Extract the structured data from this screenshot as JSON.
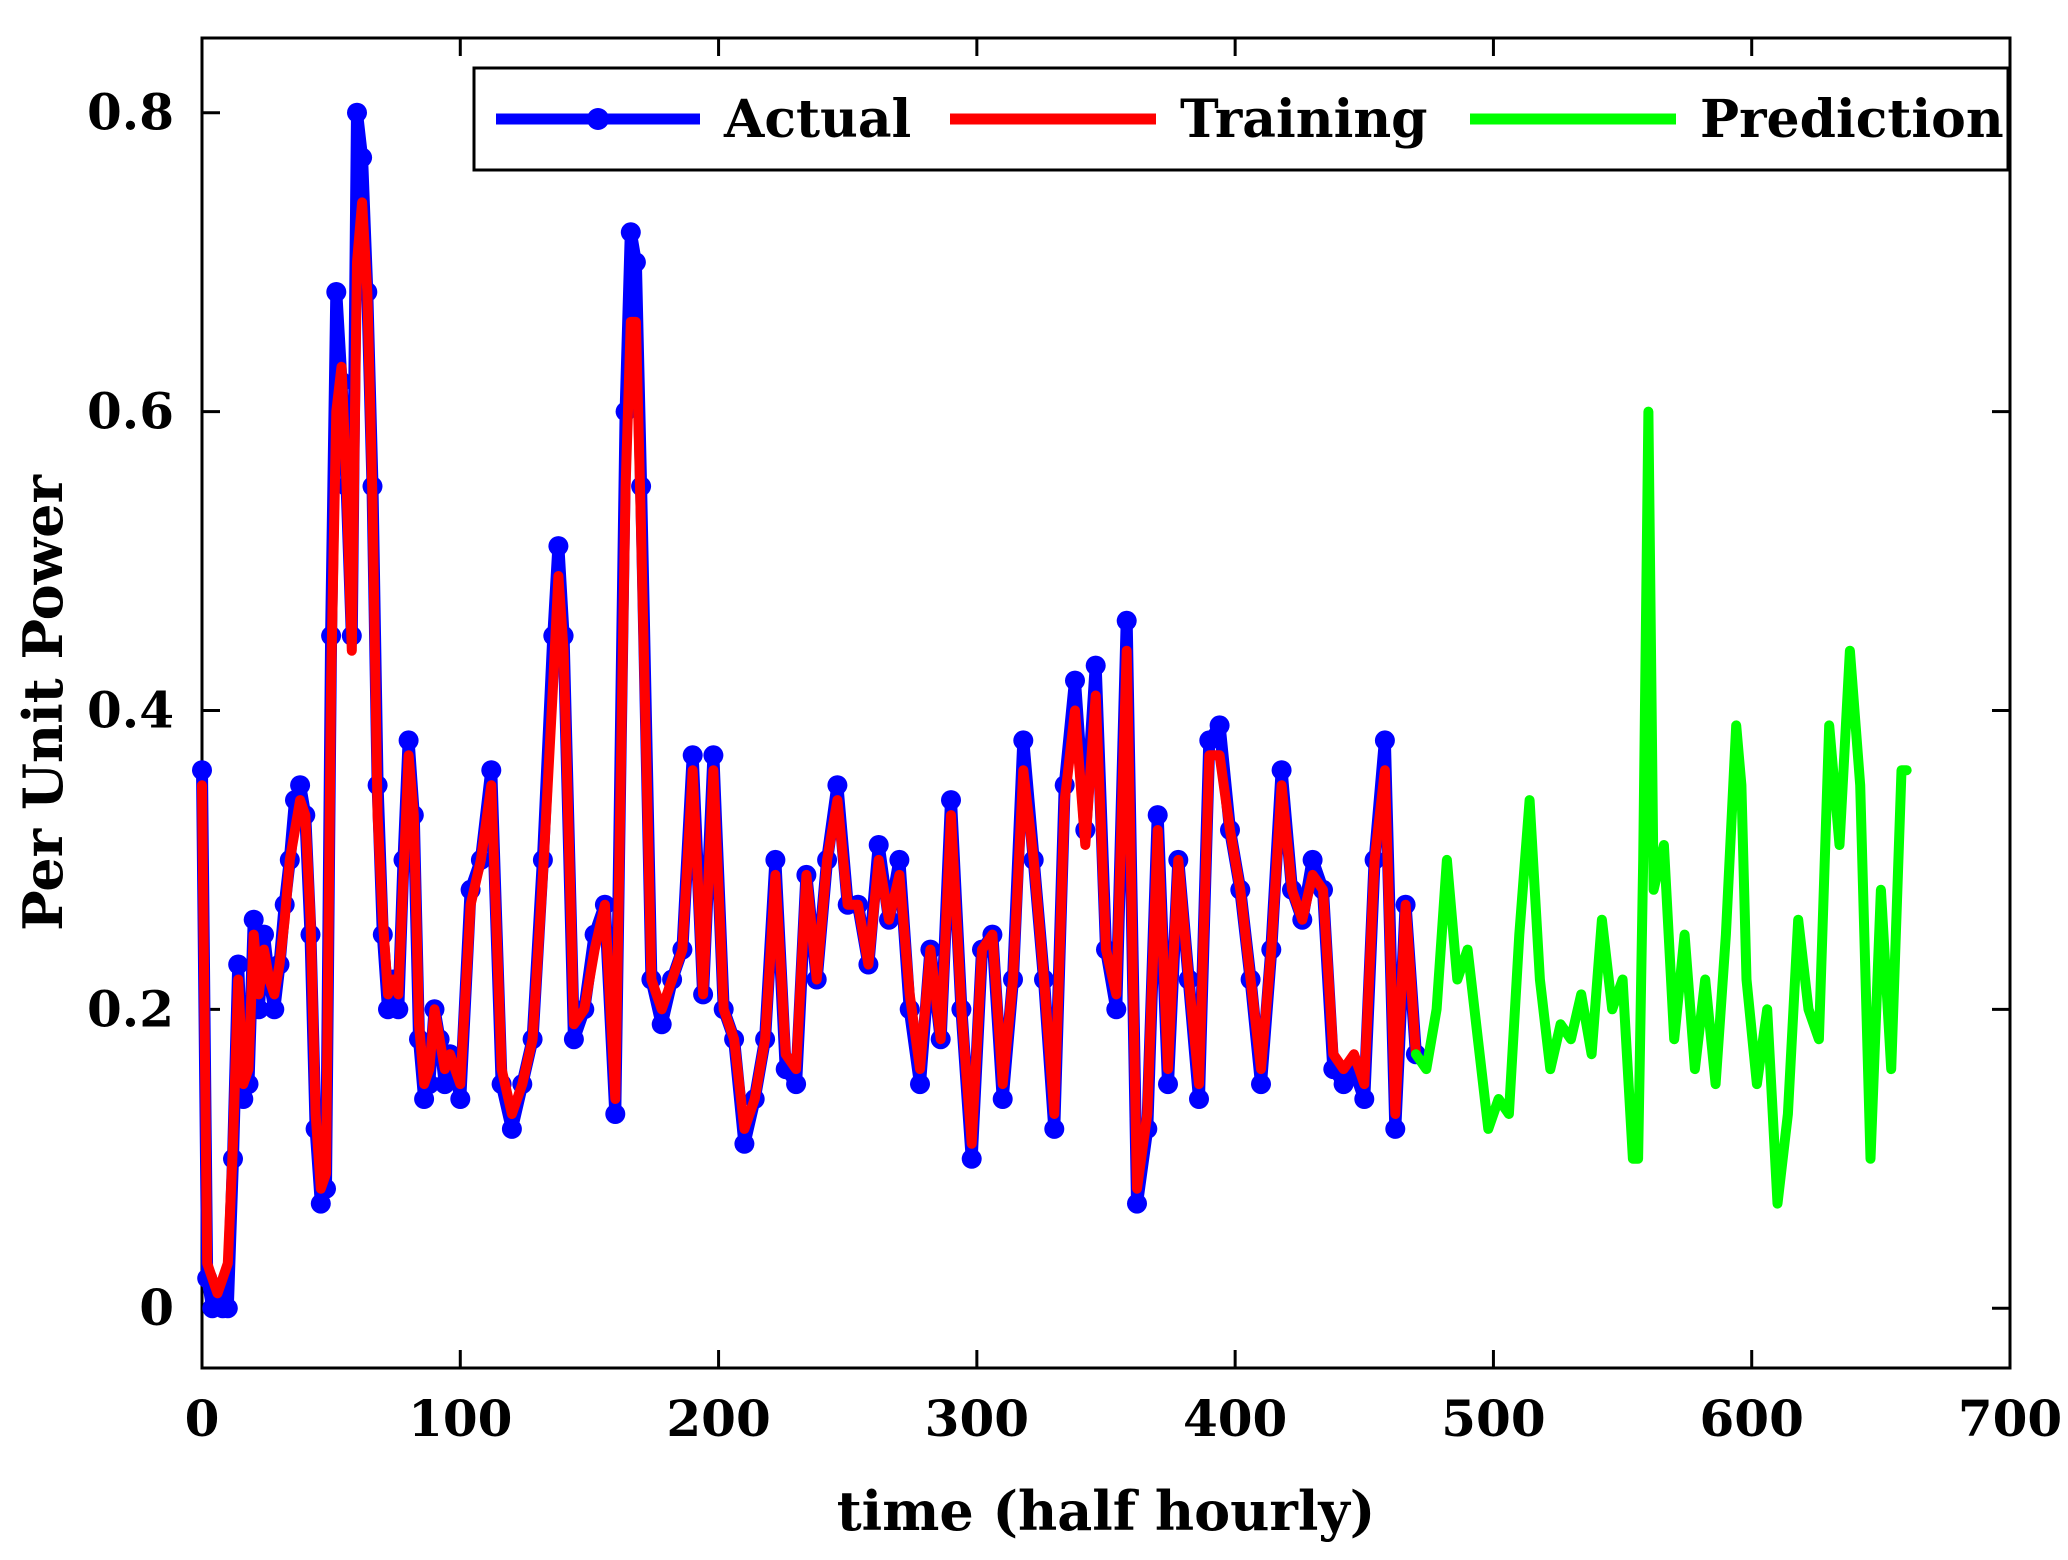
{
  "chart_data": {
    "type": "line",
    "title": "",
    "xlabel": "time (half hourly)",
    "ylabel": "Per Unit Power",
    "xlim": [
      0,
      700
    ],
    "ylim": [
      -0.04,
      0.85
    ],
    "xticks": [
      0,
      100,
      200,
      300,
      400,
      500,
      600,
      700
    ],
    "yticks": [
      0,
      0.2,
      0.4,
      0.6,
      0.8
    ],
    "xtick_labels": [
      "0",
      "100",
      "200",
      "300",
      "400",
      "500",
      "600",
      "700"
    ],
    "ytick_labels": [
      "0",
      "0.2",
      "0.4",
      "0.6",
      "0.8"
    ],
    "grid": false,
    "legend": {
      "position": "top-right",
      "entries": [
        "Actual",
        "Training",
        "Prediction"
      ]
    },
    "series": [
      {
        "name": "Actual",
        "color": "#0000ff",
        "marker": "circle",
        "x": [
          0,
          2,
          4,
          6,
          8,
          10,
          12,
          14,
          16,
          18,
          20,
          22,
          24,
          26,
          28,
          30,
          32,
          34,
          36,
          38,
          40,
          42,
          44,
          46,
          48,
          50,
          52,
          54,
          56,
          58,
          60,
          62,
          64,
          66,
          68,
          70,
          72,
          74,
          76,
          78,
          80,
          82,
          84,
          86,
          88,
          90,
          92,
          94,
          96,
          98,
          100,
          104,
          108,
          112,
          116,
          120,
          124,
          128,
          132,
          136,
          138,
          140,
          144,
          148,
          152,
          156,
          160,
          164,
          166,
          168,
          170,
          174,
          178,
          182,
          186,
          190,
          194,
          198,
          202,
          206,
          210,
          214,
          218,
          222,
          226,
          230,
          234,
          238,
          242,
          246,
          250,
          254,
          258,
          262,
          266,
          270,
          274,
          278,
          282,
          286,
          290,
          294,
          298,
          302,
          306,
          310,
          314,
          318,
          322,
          326,
          330,
          334,
          338,
          342,
          346,
          350,
          354,
          358,
          362,
          366,
          370,
          374,
          378,
          382,
          386,
          390,
          394,
          398,
          402,
          406,
          410,
          414,
          418,
          422,
          426,
          430,
          434,
          438,
          442,
          446,
          450,
          454,
          458,
          462,
          466,
          470
        ],
        "values": [
          0.36,
          0.02,
          0.0,
          0.01,
          0.0,
          0.0,
          0.1,
          0.23,
          0.14,
          0.15,
          0.26,
          0.2,
          0.25,
          0.22,
          0.2,
          0.23,
          0.27,
          0.3,
          0.34,
          0.35,
          0.33,
          0.25,
          0.12,
          0.07,
          0.08,
          0.45,
          0.68,
          0.62,
          0.55,
          0.45,
          0.8,
          0.77,
          0.68,
          0.55,
          0.35,
          0.25,
          0.2,
          0.22,
          0.2,
          0.3,
          0.38,
          0.33,
          0.18,
          0.14,
          0.15,
          0.2,
          0.18,
          0.15,
          0.17,
          0.16,
          0.14,
          0.28,
          0.3,
          0.36,
          0.15,
          0.12,
          0.15,
          0.18,
          0.3,
          0.45,
          0.51,
          0.45,
          0.18,
          0.2,
          0.25,
          0.27,
          0.13,
          0.6,
          0.72,
          0.7,
          0.55,
          0.22,
          0.19,
          0.22,
          0.24,
          0.37,
          0.21,
          0.37,
          0.2,
          0.18,
          0.11,
          0.14,
          0.18,
          0.3,
          0.16,
          0.15,
          0.29,
          0.22,
          0.3,
          0.35,
          0.27,
          0.27,
          0.23,
          0.31,
          0.26,
          0.3,
          0.2,
          0.15,
          0.24,
          0.18,
          0.34,
          0.2,
          0.1,
          0.24,
          0.25,
          0.14,
          0.22,
          0.38,
          0.3,
          0.22,
          0.12,
          0.35,
          0.42,
          0.32,
          0.43,
          0.24,
          0.2,
          0.46,
          0.07,
          0.12,
          0.33,
          0.15,
          0.3,
          0.22,
          0.14,
          0.38,
          0.39,
          0.32,
          0.28,
          0.22,
          0.15,
          0.24,
          0.36,
          0.28,
          0.26,
          0.3,
          0.28,
          0.16,
          0.15,
          0.16,
          0.14,
          0.3,
          0.38,
          0.12,
          0.27,
          0.17
        ]
      },
      {
        "name": "Training",
        "color": "#ff0000",
        "marker": "none",
        "x": [
          0,
          2,
          4,
          6,
          8,
          10,
          12,
          14,
          16,
          18,
          20,
          22,
          24,
          26,
          28,
          30,
          32,
          34,
          36,
          38,
          40,
          42,
          44,
          46,
          48,
          50,
          52,
          54,
          56,
          58,
          60,
          62,
          64,
          66,
          68,
          70,
          72,
          74,
          76,
          78,
          80,
          82,
          84,
          86,
          88,
          90,
          92,
          94,
          96,
          98,
          100,
          104,
          108,
          112,
          116,
          120,
          124,
          128,
          132,
          136,
          138,
          140,
          144,
          148,
          152,
          156,
          160,
          164,
          166,
          168,
          170,
          174,
          178,
          182,
          186,
          190,
          194,
          198,
          202,
          206,
          210,
          214,
          218,
          222,
          226,
          230,
          234,
          238,
          242,
          246,
          250,
          254,
          258,
          262,
          266,
          270,
          274,
          278,
          282,
          286,
          290,
          294,
          298,
          302,
          306,
          310,
          314,
          318,
          322,
          326,
          330,
          334,
          338,
          342,
          346,
          350,
          354,
          358,
          362,
          366,
          370,
          374,
          378,
          382,
          386,
          390,
          394,
          398,
          402,
          406,
          410,
          414,
          418,
          422,
          426,
          430,
          434,
          438,
          442,
          446,
          450,
          454,
          458,
          462,
          466,
          470
        ],
        "values": [
          0.35,
          0.03,
          0.02,
          0.01,
          0.02,
          0.03,
          0.11,
          0.22,
          0.15,
          0.16,
          0.25,
          0.21,
          0.24,
          0.22,
          0.21,
          0.23,
          0.26,
          0.3,
          0.32,
          0.34,
          0.33,
          0.26,
          0.13,
          0.08,
          0.09,
          0.42,
          0.6,
          0.63,
          0.55,
          0.44,
          0.7,
          0.74,
          0.68,
          0.54,
          0.33,
          0.26,
          0.21,
          0.22,
          0.21,
          0.29,
          0.37,
          0.33,
          0.19,
          0.15,
          0.16,
          0.2,
          0.18,
          0.16,
          0.17,
          0.16,
          0.15,
          0.27,
          0.3,
          0.35,
          0.16,
          0.13,
          0.15,
          0.18,
          0.29,
          0.42,
          0.49,
          0.44,
          0.19,
          0.2,
          0.24,
          0.27,
          0.14,
          0.55,
          0.66,
          0.66,
          0.52,
          0.22,
          0.2,
          0.22,
          0.24,
          0.36,
          0.21,
          0.36,
          0.2,
          0.18,
          0.12,
          0.14,
          0.18,
          0.29,
          0.17,
          0.16,
          0.29,
          0.22,
          0.3,
          0.34,
          0.27,
          0.27,
          0.23,
          0.3,
          0.26,
          0.29,
          0.21,
          0.16,
          0.24,
          0.18,
          0.33,
          0.2,
          0.11,
          0.24,
          0.25,
          0.15,
          0.22,
          0.36,
          0.3,
          0.22,
          0.13,
          0.34,
          0.4,
          0.31,
          0.41,
          0.24,
          0.21,
          0.44,
          0.08,
          0.13,
          0.32,
          0.16,
          0.3,
          0.22,
          0.15,
          0.37,
          0.37,
          0.32,
          0.28,
          0.22,
          0.16,
          0.24,
          0.35,
          0.28,
          0.26,
          0.29,
          0.28,
          0.17,
          0.16,
          0.17,
          0.15,
          0.3,
          0.36,
          0.13,
          0.27,
          0.17
        ]
      },
      {
        "name": "Prediction",
        "color": "#00ff00",
        "marker": "none",
        "x": [
          470,
          474,
          478,
          482,
          486,
          490,
          494,
          498,
          502,
          506,
          510,
          514,
          518,
          522,
          526,
          530,
          534,
          538,
          542,
          546,
          550,
          554,
          556,
          558,
          560,
          562,
          566,
          570,
          574,
          578,
          582,
          586,
          590,
          594,
          596,
          598,
          602,
          606,
          610,
          614,
          618,
          622,
          626,
          630,
          634,
          638,
          642,
          646,
          650,
          654,
          658,
          660
        ],
        "values": [
          0.17,
          0.16,
          0.2,
          0.3,
          0.22,
          0.24,
          0.18,
          0.12,
          0.14,
          0.13,
          0.25,
          0.34,
          0.22,
          0.16,
          0.19,
          0.18,
          0.21,
          0.17,
          0.26,
          0.2,
          0.22,
          0.1,
          0.1,
          0.3,
          0.6,
          0.28,
          0.31,
          0.18,
          0.25,
          0.16,
          0.22,
          0.15,
          0.25,
          0.39,
          0.35,
          0.22,
          0.15,
          0.2,
          0.07,
          0.13,
          0.26,
          0.2,
          0.18,
          0.39,
          0.31,
          0.44,
          0.35,
          0.1,
          0.28,
          0.16,
          0.36,
          0.36
        ]
      }
    ]
  }
}
